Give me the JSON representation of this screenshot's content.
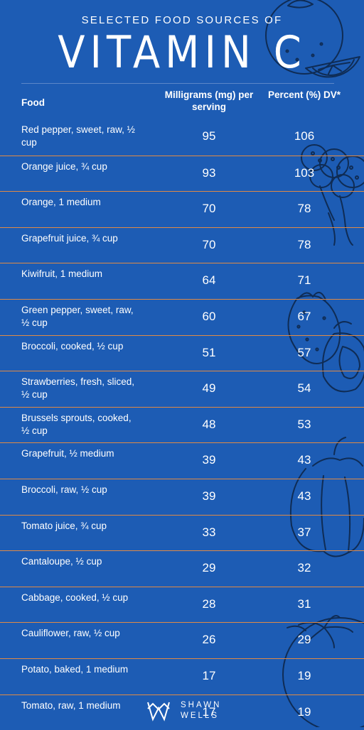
{
  "header": {
    "subtitle": "SELECTED FOOD SOURCES OF",
    "title": "VITAMIN C"
  },
  "table": {
    "columns": {
      "food": "Food",
      "mg": "Milligrams (mg) per serving",
      "dv": "Percent (%) DV*"
    },
    "rows": [
      {
        "food": "Red pepper, sweet, raw, ½ cup",
        "mg": "95",
        "dv": "106"
      },
      {
        "food": "Orange juice, ¾ cup",
        "mg": "93",
        "dv": "103"
      },
      {
        "food": "Orange, 1 medium",
        "mg": "70",
        "dv": "78"
      },
      {
        "food": "Grapefruit juice, ¾ cup",
        "mg": "70",
        "dv": "78"
      },
      {
        "food": "Kiwifruit, 1 medium",
        "mg": "64",
        "dv": "71"
      },
      {
        "food": "Green pepper, sweet, raw, ½ cup",
        "mg": "60",
        "dv": "67"
      },
      {
        "food": "Broccoli, cooked, ½ cup",
        "mg": "51",
        "dv": "57"
      },
      {
        "food": "Strawberries, fresh, sliced, ½ cup",
        "mg": "49",
        "dv": "54"
      },
      {
        "food": "Brussels sprouts, cooked, ½ cup",
        "mg": "48",
        "dv": "53"
      },
      {
        "food": "Grapefruit, ½ medium",
        "mg": "39",
        "dv": "43"
      },
      {
        "food": "Broccoli, raw, ½ cup",
        "mg": "39",
        "dv": "43"
      },
      {
        "food": "Tomato juice, ¾ cup",
        "mg": "33",
        "dv": "37"
      },
      {
        "food": "Cantaloupe, ½ cup",
        "mg": "29",
        "dv": "32"
      },
      {
        "food": "Cabbage, cooked, ½ cup",
        "mg": "28",
        "dv": "31"
      },
      {
        "food": "Cauliflower, raw, ½ cup",
        "mg": "26",
        "dv": "29"
      },
      {
        "food": "Potato, baked, 1 medium",
        "mg": "17",
        "dv": "19"
      },
      {
        "food": "Tomato, raw, 1 medium",
        "mg": "17",
        "dv": "19"
      }
    ]
  },
  "brand": {
    "line1": "SHAWN",
    "line2": "WELLS"
  },
  "colors": {
    "background": "#1d5cb4",
    "divider": "#e08a45",
    "lineart": "#0f2c55"
  },
  "icons": [
    "orange-icon",
    "orange-slice-icon",
    "broccoli-icon",
    "strawberry-icon",
    "pepper-icon",
    "tomato-icon",
    "brand-logo-icon"
  ]
}
